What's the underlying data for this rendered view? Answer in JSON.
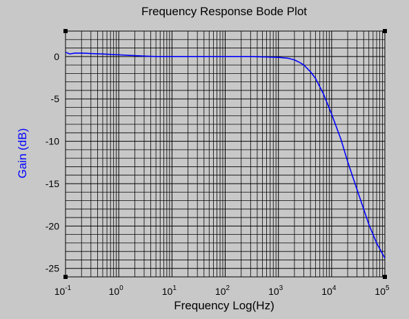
{
  "chart_data": {
    "type": "line",
    "title": "Frequency Response Bode Plot",
    "xlabel": "Frequency Log(Hz)",
    "ylabel": "Gain (dB)",
    "xscale": "log",
    "xlim": [
      0.1,
      100000
    ],
    "ylim": [
      -26,
      3
    ],
    "grid": true,
    "legend": "none",
    "x_ticks": [
      {
        "base": "10",
        "exp": "-1"
      },
      {
        "base": "10",
        "exp": "0"
      },
      {
        "base": "10",
        "exp": "1"
      },
      {
        "base": "10",
        "exp": "2"
      },
      {
        "base": "10",
        "exp": "3"
      },
      {
        "base": "10",
        "exp": "4"
      },
      {
        "base": "10",
        "exp": "5"
      }
    ],
    "y_ticks": [
      "0",
      "-5",
      "-10",
      "-15",
      "-20",
      "-25"
    ],
    "series": [
      {
        "color": "#0000ff",
        "x": [
          0.1,
          0.12,
          0.15,
          0.2,
          0.3,
          0.5,
          1,
          2,
          3,
          5,
          10,
          30,
          100,
          300,
          1000,
          1500,
          2000,
          2500,
          3000,
          4000,
          5000,
          7000,
          10000,
          15000,
          20000,
          30000,
          50000,
          70000,
          100000
        ],
        "y": [
          0.5,
          0.3,
          0.4,
          0.4,
          0.35,
          0.3,
          0.2,
          0.1,
          0.05,
          0.0,
          0.0,
          0.0,
          0.0,
          0.0,
          -0.1,
          -0.2,
          -0.4,
          -0.7,
          -1.0,
          -1.8,
          -2.6,
          -4.4,
          -6.8,
          -9.8,
          -12.4,
          -15.7,
          -19.8,
          -22.0,
          -23.8
        ]
      }
    ]
  },
  "colors": {
    "background": "#c8c8c8",
    "grid": "#000000",
    "series": "#0000ff",
    "ylabel": "#0000ff"
  }
}
